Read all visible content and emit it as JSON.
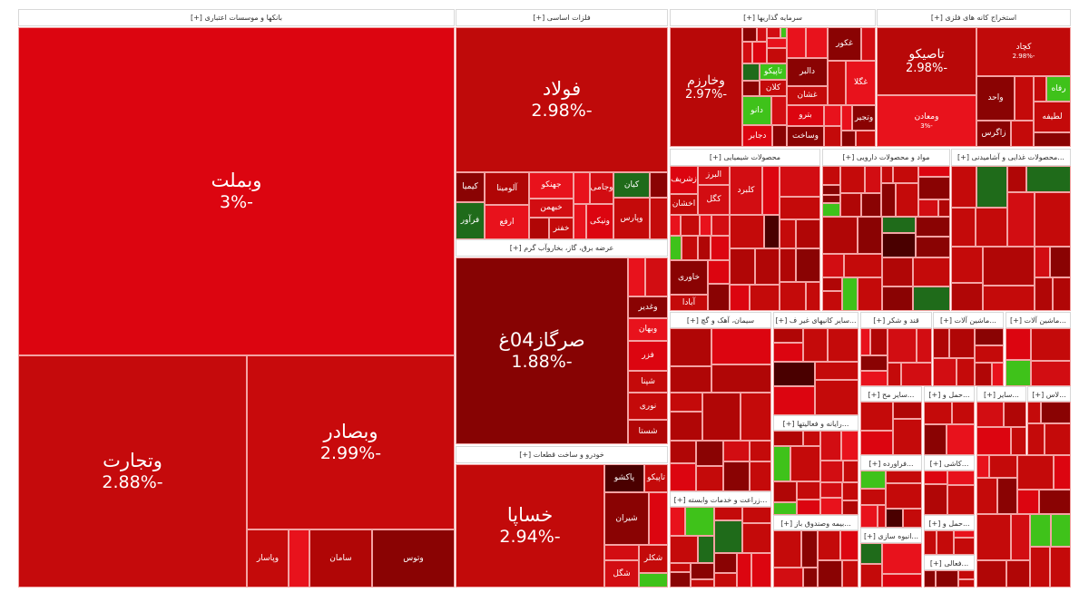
{
  "colors": {
    "strong_red": "#dc0510",
    "red": "#c40a0a",
    "dark_red": "#8a0303",
    "darkest_red": "#4a0000",
    "bright_red": "#e8121c",
    "green": "#3fc21a",
    "dark_green": "#1f6b1a"
  },
  "sectors": [
    {
      "label": "بانکها و موسسات اعتباری [+]"
    },
    {
      "label": "فلزات اساسی [+]"
    },
    {
      "label": "سرمایه گذاریها [+]"
    },
    {
      "label": "استخراج کانه های فلزی [+]"
    },
    {
      "label": "عرضه برق، گاز، بخاروآب گرم [+]"
    },
    {
      "label": "خودرو و ساخت قطعات [+]"
    },
    {
      "label": "محصولات شیمیایی [+]"
    },
    {
      "label": "مواد و محصولات دارویی [+]"
    },
    {
      "label": "...محصولات غذایی و آشامیدنی [+]"
    },
    {
      "label": "سیمان، آهک و گچ [+]"
    },
    {
      "label": "...سایر کانیهای غیر ف [+]"
    },
    {
      "label": "قند و شکر [+]"
    },
    {
      "label": "...ماشین آلات [+]"
    },
    {
      "label": "...ماشین آلات [+]"
    },
    {
      "label": "...سایر مح [+]"
    },
    {
      "label": "...حمل و [+]"
    },
    {
      "label": "...سایر [+]"
    },
    {
      "label": "...لاس [+]"
    },
    {
      "label": "...رایانه و فعالیتها [+]"
    },
    {
      "label": "...زراعت و خدمات وابسته [+]"
    },
    {
      "label": "...بیمه وصندوق باز [+]"
    },
    {
      "label": "...فراورده [+]"
    },
    {
      "label": "...کاشی [+]"
    },
    {
      "label": "...انبوه سازی [+]"
    },
    {
      "label": "...حمل و [+]"
    },
    {
      "label": "...فعالی [+]"
    }
  ],
  "tiles": {
    "vbmellat": {
      "symbol": "وبملت",
      "change": "-3%"
    },
    "vtejarat": {
      "symbol": "وتجارت",
      "change": "-2.88%"
    },
    "vbsader": {
      "symbol": "وبصادر",
      "change": "-2.99%"
    },
    "foolad": {
      "symbol": "فولاد",
      "change": "-2.98%"
    },
    "sargaz": {
      "symbol": "صرگاز04غ",
      "change": "-1.88%"
    },
    "khsapa": {
      "symbol": "خساپا",
      "change": "-2.94%"
    },
    "vkharazm": {
      "symbol": "وخارزم",
      "change": "-2.97%"
    },
    "tasiko": {
      "symbol": "تاصیکو",
      "change": "-2.98%"
    },
    "kchad": {
      "symbol": "کچاد",
      "change": "-2.98%"
    },
    "vmaaden": {
      "symbol": "ومعادن",
      "change": "-3%"
    }
  },
  "small_labels": [
    "وپاسار",
    "سامان",
    "وتوس",
    "کیمیا",
    "فرآور",
    "آلومینا",
    "ارفع",
    "جهنکو",
    "خبهمن",
    "خفنر",
    "وجامی",
    "ونیکی",
    "کیان",
    "وپارس",
    "وغدیر",
    "وبهان",
    "فزر",
    "شپنا",
    "نوری",
    "شستا",
    "پاکشو",
    "تاپیکو",
    "شیران",
    "شگل",
    "شکلر",
    "تاپیکو",
    "کلان",
    "دانو",
    "دجابر",
    "دالبر",
    "غشان",
    "غکور",
    "غگلا",
    "بترو",
    "وساخت",
    "وتجیر",
    "واحد",
    "زاگرس",
    "رفاه",
    "لطیفه",
    "زشریف",
    "اخشان",
    "البرز",
    "کگل",
    "خاوری",
    "آبادا",
    "کلبرد"
  ]
}
